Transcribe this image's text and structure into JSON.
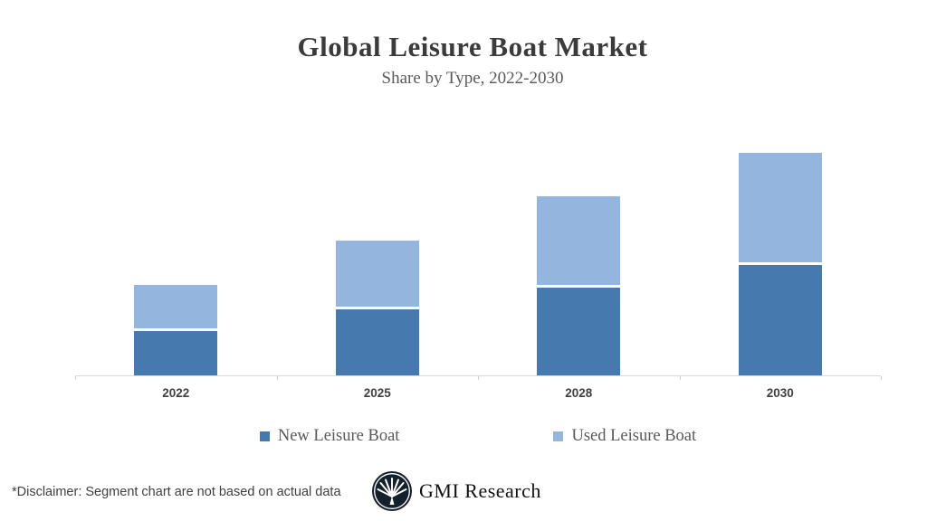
{
  "chart_data": {
    "type": "bar",
    "stacked": true,
    "title": "Global Leisure Boat Market",
    "subtitle": "Share by Type, 2022-2030",
    "categories": [
      "2022",
      "2025",
      "2028",
      "2030"
    ],
    "series": [
      {
        "name": "New Leisure Boat",
        "color": "#4679AD",
        "values": [
          10,
          15,
          20,
          25
        ]
      },
      {
        "name": "Used Leisure Boat",
        "color": "#93B5DE",
        "values": [
          10,
          15,
          20,
          25
        ]
      }
    ],
    "totals": [
      20,
      30,
      40,
      50
    ],
    "ylim": [
      0,
      51
    ],
    "grid": false,
    "legend_position": "bottom",
    "axis_color": "#D9D9D9",
    "value_labels_shown": false
  },
  "footer": {
    "disclaimer": "*Disclaimer:  Segment chart are not based on actual data",
    "brand": "GMI Research"
  },
  "colors": {
    "background": "#FFFFFF",
    "title_text": "#3B3B3B",
    "subtitle_text": "#595959",
    "axis_label_text": "#404040",
    "legend_text": "#595959",
    "logo_circle": "#15202D"
  }
}
